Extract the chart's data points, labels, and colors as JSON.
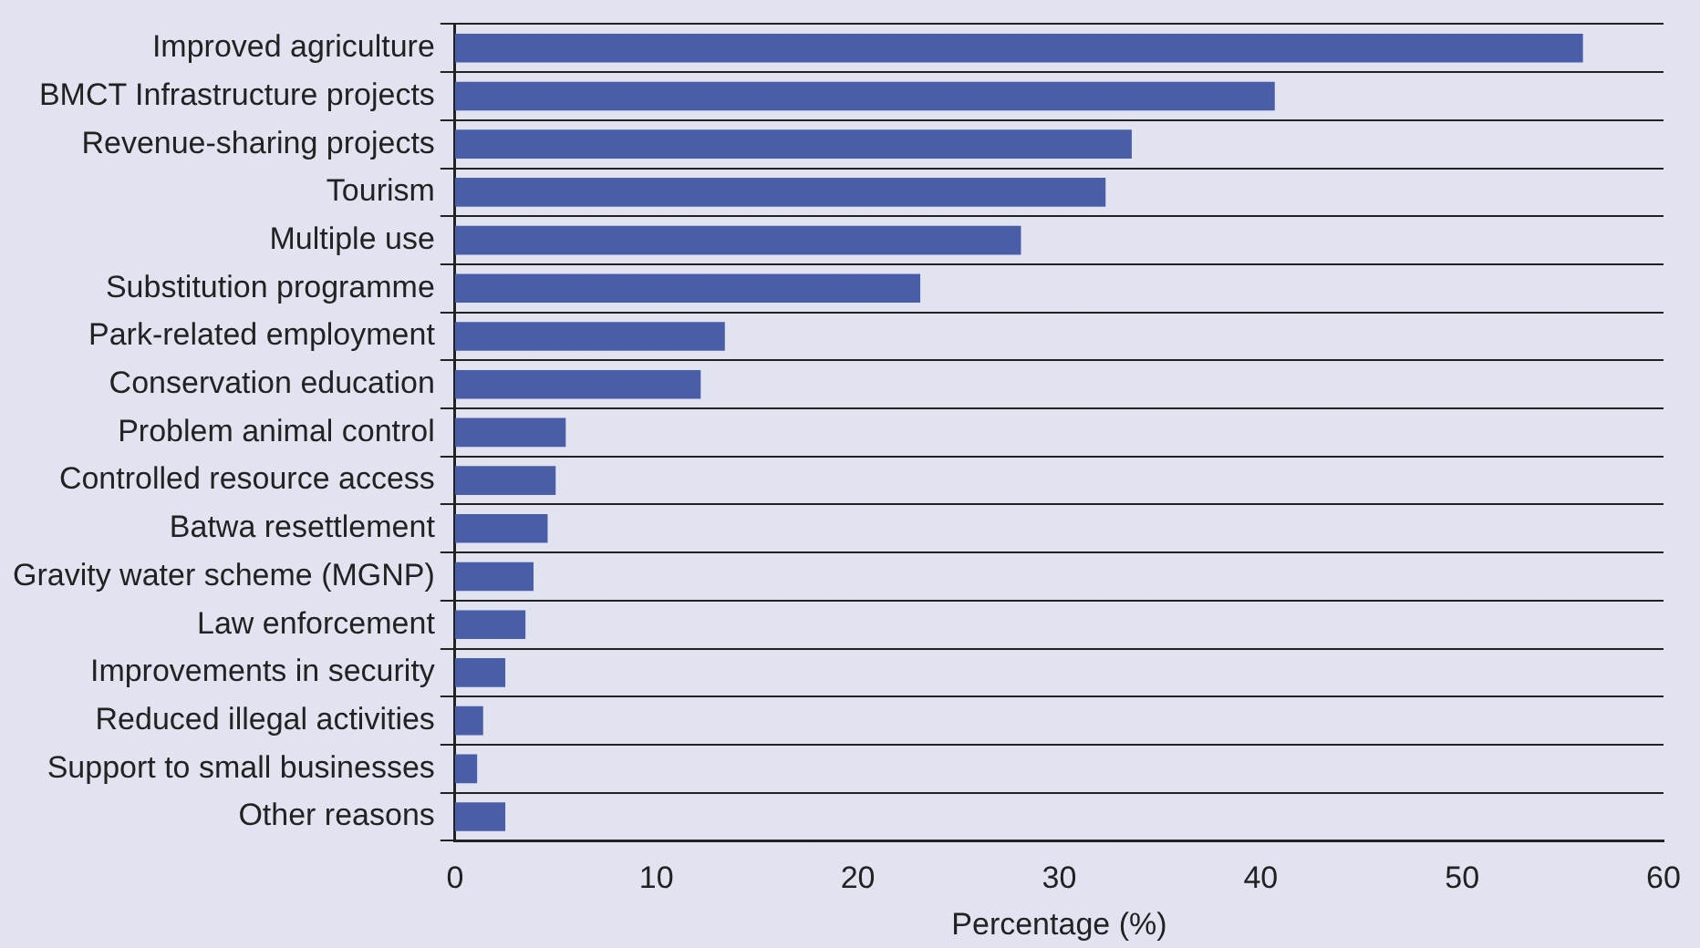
{
  "chart_data": {
    "type": "bar",
    "orientation": "horizontal",
    "xlabel": "Percentage (%)",
    "categories": [
      "Improved agriculture",
      "BMCT Infrastructure projects",
      "Revenue-sharing projects",
      "Tourism",
      "Multiple use",
      "Substitution programme",
      "Park-related employment",
      "Conservation education",
      "Problem animal control",
      "Controlled resource access",
      "Batwa resettlement",
      "Gravity water scheme (MGNP)",
      "Law enforcement",
      "Improvements in security",
      "Reduced illegal activities",
      "Support to small businesses",
      "Other reasons"
    ],
    "values": [
      56.0,
      40.7,
      33.6,
      32.3,
      28.1,
      23.1,
      13.4,
      12.2,
      5.5,
      5.0,
      4.6,
      3.9,
      3.5,
      2.5,
      1.4,
      1.1,
      2.5
    ],
    "color": "#4a5ea8",
    "xlim": [
      0,
      60
    ],
    "xticks": [
      0,
      10,
      20,
      30,
      40,
      50,
      60
    ],
    "grid": "y",
    "legend": false
  }
}
